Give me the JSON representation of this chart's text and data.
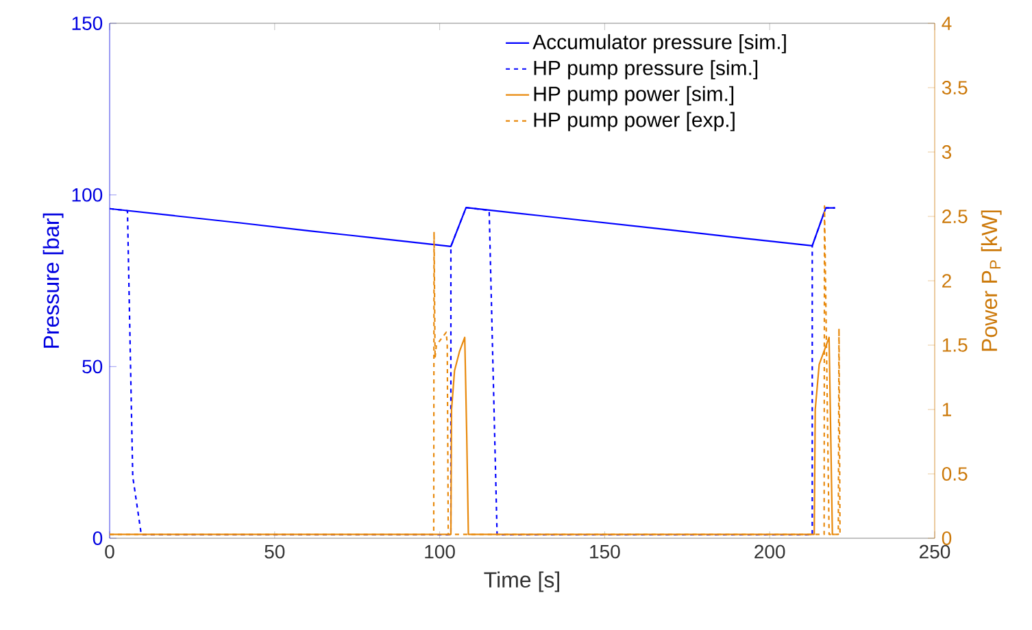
{
  "chart_data": {
    "type": "line",
    "xlabel": "Time [s]",
    "ylabel": "Pressure [bar]",
    "y2label": "Power P$_{P}$ [kW]",
    "xlim": [
      0,
      250
    ],
    "xticks": [
      0,
      50,
      100,
      150,
      200,
      250
    ],
    "ylim": [
      0,
      150
    ],
    "yticks": [
      0,
      50,
      100,
      150
    ],
    "y2lim": [
      0,
      4
    ],
    "y2ticks": [
      0,
      0.5,
      1,
      1.5,
      2,
      2.5,
      3,
      3.5,
      4
    ],
    "legend": "top right",
    "grid": false,
    "marker": "none",
    "series": [
      {
        "name": "Accumulator pressure [sim.]",
        "color": "#0000ff",
        "line_style": "solid",
        "axis": "y",
        "x": [
          0,
          20,
          40,
          60,
          80,
          103.4,
          108,
          130,
          150,
          170,
          190,
          212.9,
          217,
          219.8
        ],
        "values": [
          96,
          93.9,
          91.8,
          89.6,
          87.5,
          85,
          96.3,
          94,
          91.9,
          89.8,
          87.6,
          85.2,
          96.2,
          96.2
        ]
      },
      {
        "name": "HP pump pressure [sim.]",
        "color": "#0000ff",
        "line_style": "dashed",
        "axis": "y",
        "x": [
          0,
          5.4,
          7,
          9.6,
          103.4,
          103.4,
          108,
          115,
          117.4,
          212.9,
          212.9,
          217,
          219.8
        ],
        "values": [
          96,
          95.4,
          18,
          1,
          1,
          85,
          96.3,
          95.5,
          1,
          1,
          85.2,
          96.2,
          96.2
        ]
      },
      {
        "name": "HP pump power [sim.]",
        "color": "#e8890c",
        "line_style": "solid",
        "axis": "y2",
        "x": [
          0,
          103.4,
          103.6,
          104.5,
          106,
          107.6,
          108.2,
          108.7,
          213.5,
          213.8,
          215,
          218,
          218.5,
          219,
          219.8
        ],
        "values": [
          0.03,
          0.03,
          1.0,
          1.3,
          1.45,
          1.56,
          0.8,
          0.03,
          0.03,
          1.0,
          1.35,
          1.56,
          0.8,
          0.03,
          0.03
        ]
      },
      {
        "name": "HP pump power [exp.]",
        "color": "#e8890c",
        "line_style": "dashed",
        "axis": "y2",
        "x": [
          0,
          98.2,
          98.3,
          98.6,
          99,
          100.5,
          102,
          102.3,
          102.6,
          216.5,
          216.6,
          217.2,
          218,
          220.8,
          221,
          221.3,
          222
        ],
        "values": [
          0.03,
          0.03,
          2.38,
          1.4,
          1.5,
          1.55,
          1.6,
          1.5,
          0.03,
          0.03,
          2.58,
          1.5,
          0.03,
          0.03,
          1.63,
          0.03,
          0.03
        ]
      }
    ]
  }
}
